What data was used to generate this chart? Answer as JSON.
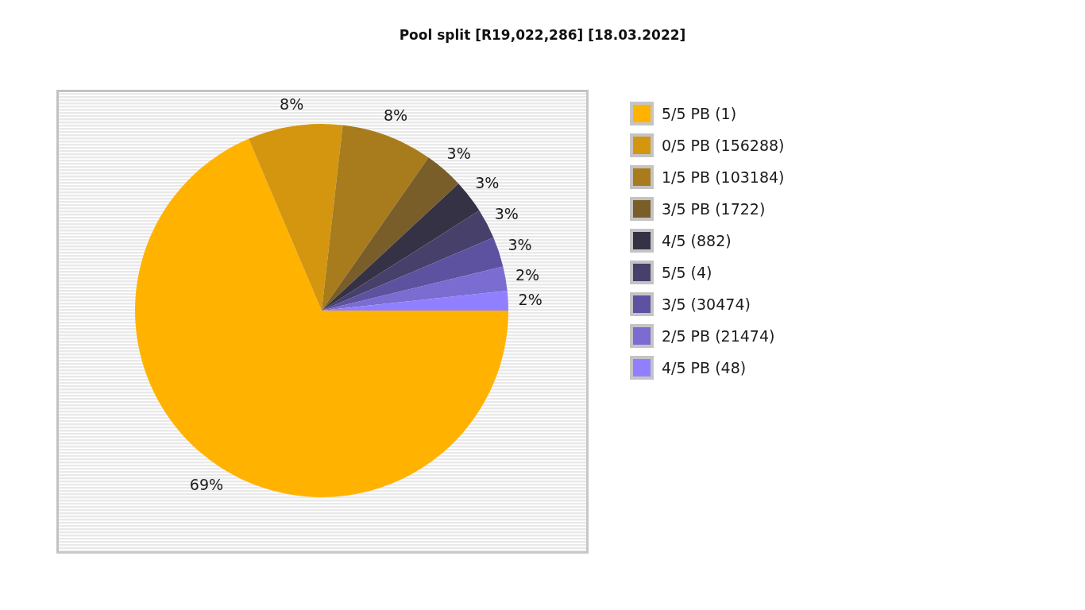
{
  "chart_data": {
    "type": "pie",
    "title": "Pool split [R19,022,286] [18.03.2022]",
    "categories": [
      "5/5 PB (1)",
      "0/5 PB (156288)",
      "1/5 PB (103184)",
      "3/5 PB (1722)",
      "4/5 (882)",
      "5/5 (4)",
      "3/5 (30474)",
      "2/5 PB (21474)",
      "4/5 PB (48)"
    ],
    "values": [
      68.6,
      8.2,
      7.9,
      3.4,
      2.9,
      2.6,
      2.6,
      2.1,
      1.7
    ],
    "value_labels": [
      "69%",
      "8%",
      "8%",
      "3%",
      "3%",
      "3%",
      "3%",
      "2%",
      "2%"
    ],
    "colors": [
      "#ffb300",
      "#d4960f",
      "#a87c1c",
      "#7a5e2a",
      "#363245",
      "#46406a",
      "#5c52a0",
      "#7a6cd0",
      "#9080ff"
    ],
    "legend": "right"
  }
}
